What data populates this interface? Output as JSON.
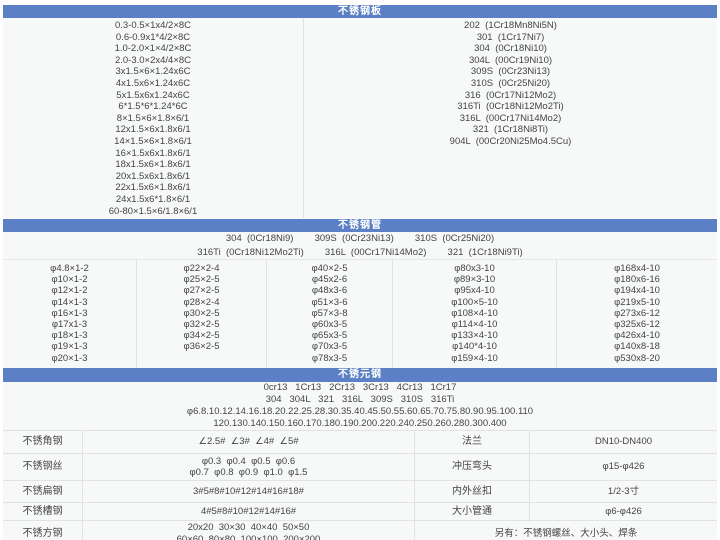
{
  "accent_color": "#5b80c5",
  "plate": {
    "title": "不锈钢板",
    "sizes": [
      "0.3-0.5×1x4/2×8C",
      "0.6-0.9x1*4/2×8C",
      "1.0-2.0×1×4/2×8C",
      "2.0-3.0×2x4/4×8C",
      "3x1.5×6×1.24x6C",
      "4x1.5x6×1.24x6C",
      "5x1.5x6x1.24x6C",
      "6*1.5*6*1.24*6C",
      "8×1.5×6×1.8×6/1",
      "12x1.5×6x1.8x6/1",
      "14×1.5×6×1.8×6/1",
      "16×1.5x6x1.8x6/1",
      "18x1.5x6×1.8x6/1",
      "20x1.5x6x1.8x6/1",
      "22x1.5x6×1.8x6/1",
      "24x1.5x6*1.8×6/1",
      "60-80×1.5×6/1.8×6/1"
    ],
    "grades": [
      "202  (1Cr18Mn8Ni5N)",
      "301  (1Cr17Ni7)",
      "304  (0Cr18Ni10)",
      "304L  (00Cr19Ni10)",
      "309S  (0Cr23Ni13)",
      "310S  (0Cr25Ni20)",
      "316  (0Cr17Ni12Mo2)",
      "316Ti  (0Cr18Ni12Mo2Ti)",
      "316L  (00Cr17Ni14Mo2)",
      "321  (1Cr18Ni8Ti)",
      "904L  (00Cr20Ni25Mo4.5Cu)"
    ]
  },
  "pipe": {
    "title": "不锈钢管",
    "grade_lines": [
      "304  (0Cr18Ni9)        309S  (0Cr23Ni13)        310S  (0Cr25Ni20)",
      "316Ti  (0Cr18Ni12Mo2Ti)        316L  (00Cr17Ni14Mo2)        321  (1Cr18Ni9Ti)"
    ],
    "columns": [
      [
        "φ4.8×1-2",
        "φ10×1-2",
        "φ12×1-2",
        "φ14×1-3",
        "φ16×1-3",
        "φ17x1-3",
        "φ18×1-3",
        "φ19×1-3",
        "φ20×1-3"
      ],
      [
        "φ22×2-4",
        "φ25×2-5",
        "φ27×2-5",
        "φ28×2-4",
        "φ30×2-5",
        "φ32×2-5",
        "φ34×2-5",
        "φ36×2-5"
      ],
      [
        "φ40×2-5",
        "φ45x2-6",
        "φ48x3-6",
        "φ51×3-6",
        "φ57×3-8",
        "φ60x3-5",
        "φ65x3-5",
        "φ70x3-5",
        "φ78x3-5"
      ],
      [
        "φ80x3-10",
        "φ89×3-10",
        "φ95x4-10",
        "φ100×5-10",
        "φ108×4-10",
        "φ114×4-10",
        "φ133×4-10",
        "φ140*4-10",
        "φ159×4-10"
      ],
      [
        "φ168x4-10",
        "φ180x6-16",
        "φ194x4-10",
        "φ219x5-10",
        "φ273x6-12",
        "φ325x6-12",
        "φ426x4-10",
        "φ140x8-18",
        "φ530x8-20"
      ]
    ]
  },
  "round": {
    "title": "不锈元钢",
    "lines": [
      "0cr13   1Cr13   2Cr13   3Cr13   4Cr13   1Cr17",
      "304   304L   321   316L   309S   310S   316Ti",
      "φ6.8.10.12.14.16.18.20.22.25.28.30.35.40.45.50.55.60.65.70.75.80.90.95.100.110",
      "120.130.140.150.160.170.180.190.200.220.240.250.260.280.300.400"
    ]
  },
  "misc": {
    "rows": [
      {
        "label": "不锈角钢",
        "value": "∠2.5#  ∠3#  ∠4#  ∠5#",
        "label2": "法兰",
        "value2": "DN10-DN400"
      },
      {
        "label": "不锈钢丝",
        "value": "φ0.3  φ0.4  φ0.5  φ0.6\nφ0.7  φ0.8  φ0.9  φ1.0  φ1.5",
        "label2": "冲压弯头",
        "value2": "φ15-φ426"
      },
      {
        "label": "不锈扁钢",
        "value": "3#5#8#10#12#14#16#18#",
        "label2": "内外丝扣",
        "value2": "1/2-3寸"
      },
      {
        "label": "不锈槽钢",
        "value": "4#5#8#10#12#14#16#",
        "label2": "大小管通",
        "value2": "φ6-φ426"
      },
      {
        "label": "不锈方钢",
        "value": "20x20  30×30  40×40  50×50\n60×60  80×80  100×100  200×200",
        "merged": "另有：不锈钢螺丝、大小头、焊条"
      }
    ]
  }
}
